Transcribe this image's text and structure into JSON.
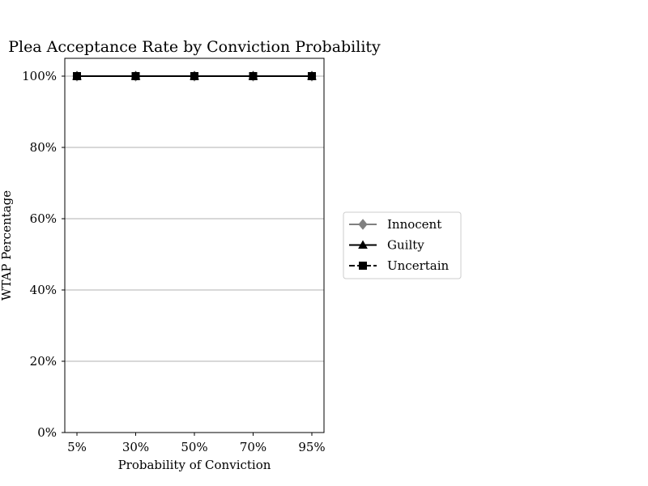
{
  "chart_data": {
    "type": "line",
    "title": "Plea Acceptance Rate by Conviction Probability",
    "xlabel": "Probability of Conviction",
    "ylabel": "WTAP Percentage",
    "categories": [
      "5%",
      "30%",
      "50%",
      "70%",
      "95%"
    ],
    "y_ticks": [
      "0%",
      "20%",
      "40%",
      "60%",
      "80%",
      "100%"
    ],
    "ylim": [
      0,
      105
    ],
    "grid": "horizontal",
    "legend_position": "right",
    "series": [
      {
        "name": "Innocent",
        "values": [
          100,
          100,
          100,
          100,
          100
        ],
        "color": "#808080",
        "marker": "diamond",
        "linestyle": "solid"
      },
      {
        "name": "Guilty",
        "values": [
          100,
          100,
          100,
          100,
          100
        ],
        "color": "#000000",
        "marker": "triangle",
        "linestyle": "solid"
      },
      {
        "name": "Uncertain",
        "values": [
          100,
          100,
          100,
          100,
          100
        ],
        "color": "#000000",
        "marker": "square",
        "linestyle": "dashed"
      }
    ]
  }
}
